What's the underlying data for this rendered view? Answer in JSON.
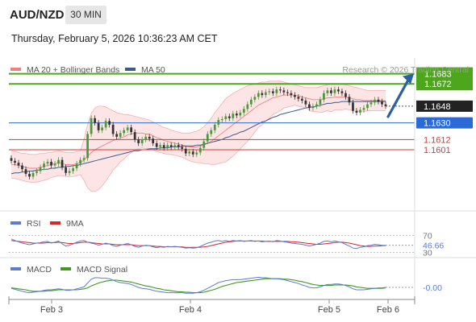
{
  "header": {
    "pair": "AUD/NZD",
    "timeframe": "30 MIN",
    "datetime": "Thursday, February 5, 2026 10:36:23 AM CET",
    "credit": "Research © 2026 Trading Central"
  },
  "colors": {
    "resistance": "#4ea61c",
    "pivot": "#2b6ad6",
    "support": "#d23a3a",
    "last_price": "#222222",
    "candle_up": "#4a9a3c",
    "candle_down": "#333333",
    "bollinger_fill": "#fde0e0",
    "ma20": "#f08080",
    "ma50": "#3a5a8c",
    "rsi": "#5b7bd5",
    "rsi_ma": "#d62828",
    "macd": "#5b7bd5",
    "macd_signal": "#3e9a1e",
    "arrow": "#2b5fa6"
  },
  "chart_data": [
    {
      "type": "candlestick",
      "panel": "price",
      "legend": [
        {
          "name": "MA 20 + Bollinger Bands",
          "color": "#f08080"
        },
        {
          "name": "MA 50",
          "color": "#3a5a8c"
        }
      ],
      "x_ticks": [
        "Feb 3",
        "Feb 4",
        "Feb 5",
        "Feb 6"
      ],
      "y_range": [
        1.1535,
        1.17
      ],
      "levels": [
        {
          "value": 1.1683,
          "label": "1.1683",
          "kind": "resistance"
        },
        {
          "value": 1.1672,
          "label": "1.1672",
          "kind": "resistance"
        },
        {
          "value": 1.163,
          "label": "1.1630",
          "kind": "pivot"
        },
        {
          "value": 1.1612,
          "label": "1.1612",
          "kind": "support"
        },
        {
          "value": 1.1601,
          "label": "1.1601",
          "kind": "support"
        }
      ],
      "last_price": {
        "value": 1.1648,
        "label": "1.1648"
      },
      "close": [
        1.1589,
        1.1587,
        1.1584,
        1.158,
        1.1575,
        1.1572,
        1.1576,
        1.1578,
        1.1582,
        1.1586,
        1.1588,
        1.1584,
        1.1586,
        1.159,
        1.1582,
        1.1576,
        1.1578,
        1.1581,
        1.1586,
        1.159,
        1.1592,
        1.1618,
        1.1635,
        1.163,
        1.1622,
        1.1625,
        1.1632,
        1.1628,
        1.1618,
        1.1615,
        1.1619,
        1.1622,
        1.1625,
        1.162,
        1.1612,
        1.1608,
        1.1612,
        1.1615,
        1.1613,
        1.1608,
        1.1604,
        1.1606,
        1.1603,
        1.1606,
        1.1604,
        1.1606,
        1.1604,
        1.1602,
        1.1597,
        1.1599,
        1.1596,
        1.1598,
        1.1603,
        1.161,
        1.1618,
        1.1622,
        1.1628,
        1.1633,
        1.1634,
        1.1637,
        1.1635,
        1.164,
        1.1638,
        1.1641,
        1.1645,
        1.165,
        1.1655,
        1.1658,
        1.1662,
        1.166,
        1.1663,
        1.1664,
        1.1662,
        1.1666,
        1.1665,
        1.1663,
        1.1662,
        1.166,
        1.1658,
        1.1656,
        1.1654,
        1.165,
        1.1646,
        1.1648,
        1.165,
        1.1655,
        1.1662,
        1.1665,
        1.1662,
        1.1666,
        1.1664,
        1.1662,
        1.1658,
        1.1652,
        1.1643,
        1.1641,
        1.1644,
        1.1646,
        1.165,
        1.1652,
        1.1655,
        1.1653,
        1.165,
        1.1648
      ],
      "ma20": [
        1.1585,
        1.1585,
        1.1584,
        1.1583,
        1.1582,
        1.1581,
        1.1581,
        1.1581,
        1.1582,
        1.1583,
        1.1584,
        1.1585,
        1.1586,
        1.1587,
        1.1586,
        1.1585,
        1.1585,
        1.1585,
        1.1586,
        1.1587,
        1.159,
        1.1594,
        1.1598,
        1.1601,
        1.1603,
        1.1605,
        1.1607,
        1.1609,
        1.1611,
        1.1612,
        1.1614,
        1.1615,
        1.1617,
        1.1618,
        1.1619,
        1.1619,
        1.1619,
        1.1618,
        1.1618,
        1.1616,
        1.1614,
        1.1613,
        1.1611,
        1.161,
        1.1609,
        1.1608,
        1.1607,
        1.1606,
        1.1605,
        1.1604,
        1.1604,
        1.1604,
        1.1605,
        1.1606,
        1.1608,
        1.161,
        1.1613,
        1.1616,
        1.1619,
        1.1622,
        1.1625,
        1.1628,
        1.1631,
        1.1634,
        1.1637,
        1.164,
        1.1643,
        1.1646,
        1.1649,
        1.1651,
        1.1653,
        1.1655,
        1.1657,
        1.1658,
        1.1659,
        1.166,
        1.166,
        1.166,
        1.166,
        1.1659,
        1.1658,
        1.1657,
        1.1656,
        1.1655,
        1.1655,
        1.1655,
        1.1656,
        1.1657,
        1.1657,
        1.1658,
        1.1658,
        1.1658,
        1.1658,
        1.1657,
        1.1656,
        1.1655,
        1.1655,
        1.1654,
        1.1654,
        1.1654,
        1.1654,
        1.1654,
        1.1654,
        1.1654
      ],
      "bb_upper": [
        1.16,
        1.1599,
        1.1598,
        1.1597,
        1.1597,
        1.1596,
        1.1596,
        1.1596,
        1.1597,
        1.1597,
        1.1598,
        1.1598,
        1.1599,
        1.16,
        1.1599,
        1.1598,
        1.1598,
        1.1598,
        1.1599,
        1.16,
        1.1612,
        1.1628,
        1.164,
        1.1646,
        1.1648,
        1.1648,
        1.1647,
        1.1645,
        1.1643,
        1.1641,
        1.164,
        1.1639,
        1.1639,
        1.1638,
        1.1637,
        1.1636,
        1.1635,
        1.1634,
        1.1633,
        1.1631,
        1.1629,
        1.1627,
        1.1625,
        1.1624,
        1.1622,
        1.1621,
        1.162,
        1.1619,
        1.1619,
        1.1619,
        1.162,
        1.1621,
        1.1623,
        1.1626,
        1.163,
        1.1635,
        1.1641,
        1.1646,
        1.1651,
        1.1656,
        1.1659,
        1.1662,
        1.1664,
        1.1666,
        1.1668,
        1.167,
        1.1671,
        1.1672,
        1.1673,
        1.1674,
        1.1674,
        1.1675,
        1.1675,
        1.1675,
        1.1675,
        1.1674,
        1.1673,
        1.1672,
        1.1671,
        1.167,
        1.1669,
        1.1668,
        1.1668,
        1.1668,
        1.1668,
        1.1669,
        1.167,
        1.1671,
        1.1672,
        1.1672,
        1.1672,
        1.1672,
        1.1671,
        1.167,
        1.1669,
        1.1668,
        1.1667,
        1.1666,
        1.1665,
        1.1665,
        1.1665,
        1.1665,
        1.1665,
        1.1665
      ],
      "bb_lower": [
        1.157,
        1.157,
        1.1569,
        1.1568,
        1.1567,
        1.1566,
        1.1566,
        1.1566,
        1.1567,
        1.1568,
        1.1569,
        1.1571,
        1.1572,
        1.1573,
        1.1573,
        1.1572,
        1.1572,
        1.1572,
        1.1573,
        1.1574,
        1.1568,
        1.156,
        1.1556,
        1.1556,
        1.1558,
        1.1562,
        1.1567,
        1.1573,
        1.1579,
        1.1583,
        1.1588,
        1.1591,
        1.1595,
        1.1598,
        1.1601,
        1.1602,
        1.1603,
        1.1602,
        1.1602,
        1.1601,
        1.1599,
        1.1598,
        1.1597,
        1.1596,
        1.1596,
        1.1595,
        1.1594,
        1.1593,
        1.1591,
        1.1589,
        1.1588,
        1.1587,
        1.1587,
        1.1586,
        1.1586,
        1.1585,
        1.1585,
        1.1586,
        1.1587,
        1.1588,
        1.1591,
        1.1594,
        1.1598,
        1.1602,
        1.1606,
        1.161,
        1.1615,
        1.162,
        1.1625,
        1.1628,
        1.1632,
        1.1635,
        1.1639,
        1.1641,
        1.1643,
        1.1646,
        1.1647,
        1.1648,
        1.1649,
        1.1648,
        1.1647,
        1.1646,
        1.1644,
        1.1642,
        1.1642,
        1.1641,
        1.1642,
        1.1643,
        1.1642,
        1.1644,
        1.1644,
        1.1644,
        1.1645,
        1.1644,
        1.1643,
        1.1642,
        1.1643,
        1.1642,
        1.1643,
        1.1643,
        1.1643,
        1.1643,
        1.1643,
        1.1643
      ],
      "ma50": [
        1.1575,
        1.1576,
        1.1576,
        1.1577,
        1.1577,
        1.1578,
        1.1578,
        1.1579,
        1.1579,
        1.158,
        1.158,
        1.1581,
        1.1581,
        1.1582,
        1.1582,
        1.1583,
        1.1583,
        1.1584,
        1.1584,
        1.1585,
        1.1586,
        1.1587,
        1.1588,
        1.1589,
        1.159,
        1.1591,
        1.1592,
        1.1593,
        1.1594,
        1.1595,
        1.1596,
        1.1597,
        1.1598,
        1.1599,
        1.16,
        1.16,
        1.1601,
        1.1601,
        1.1602,
        1.1602,
        1.1602,
        1.1603,
        1.1603,
        1.1603,
        1.1604,
        1.1604,
        1.1604,
        1.1605,
        1.1605,
        1.1605,
        1.1605,
        1.1606,
        1.1606,
        1.1607,
        1.1608,
        1.1609,
        1.161,
        1.1611,
        1.1612,
        1.1614,
        1.1615,
        1.1617,
        1.1618,
        1.162,
        1.1621,
        1.1623,
        1.1625,
        1.1627,
        1.1629,
        1.1631,
        1.1632,
        1.1634,
        1.1636,
        1.1637,
        1.1639,
        1.164,
        1.1641,
        1.1642,
        1.1643,
        1.1644,
        1.1645,
        1.1646,
        1.1647,
        1.1647,
        1.1648,
        1.1649,
        1.165,
        1.1651,
        1.1651,
        1.1652,
        1.1652,
        1.1653,
        1.1653,
        1.1653,
        1.1653,
        1.1653,
        1.1653,
        1.1653,
        1.1653,
        1.1653,
        1.1653,
        1.1653,
        1.1653,
        1.1653
      ]
    },
    {
      "type": "line",
      "panel": "rsi",
      "legend": [
        {
          "name": "RSI",
          "color": "#5b7bd5"
        },
        {
          "name": "9MA",
          "color": "#d62828"
        }
      ],
      "y_ticks": [
        70,
        30
      ],
      "current_value": {
        "value": 46.66,
        "label": "46.66"
      },
      "rsi": [
        62,
        58,
        55,
        52,
        50,
        48,
        50,
        52,
        53,
        55,
        56,
        52,
        54,
        57,
        50,
        45,
        47,
        50,
        54,
        57,
        58,
        54,
        52,
        50,
        47,
        49,
        52,
        50,
        46,
        44,
        47,
        49,
        51,
        48,
        44,
        42,
        45,
        47,
        46,
        43,
        41,
        43,
        42,
        44,
        43,
        44,
        43,
        42,
        40,
        41,
        40,
        41,
        44,
        48,
        52,
        54,
        57,
        58,
        56,
        58,
        56,
        58,
        57,
        58,
        56,
        57,
        58,
        56,
        57,
        55,
        56,
        57,
        55,
        58,
        57,
        55,
        54,
        52,
        51,
        50,
        49,
        47,
        45,
        47,
        49,
        52,
        56,
        57,
        55,
        57,
        55,
        53,
        49,
        45,
        40,
        39,
        42,
        43,
        46,
        47,
        49,
        48,
        47,
        46.66
      ],
      "ma9": [
        58,
        57,
        56,
        55,
        54,
        53,
        52,
        52,
        52,
        52,
        53,
        53,
        53,
        54,
        53,
        52,
        51,
        51,
        52,
        53,
        54,
        54,
        53,
        52,
        51,
        50,
        50,
        50,
        49,
        48,
        48,
        48,
        48,
        48,
        47,
        46,
        46,
        46,
        46,
        45,
        44,
        44,
        43,
        43,
        43,
        43,
        43,
        43,
        42,
        42,
        42,
        42,
        42,
        43,
        44,
        46,
        48,
        50,
        52,
        54,
        55,
        56,
        57,
        57,
        57,
        57,
        57,
        57,
        57,
        57,
        56,
        56,
        56,
        56,
        56,
        56,
        56,
        55,
        55,
        54,
        53,
        52,
        51,
        50,
        49,
        49,
        50,
        51,
        52,
        53,
        54,
        54,
        53,
        52,
        50,
        48,
        46,
        45,
        44,
        44,
        45,
        45,
        46,
        46
      ]
    },
    {
      "type": "line",
      "panel": "macd",
      "legend": [
        {
          "name": "MACD",
          "color": "#5b7bd5"
        },
        {
          "name": "MACD Signal",
          "color": "#3e9a1e"
        }
      ],
      "current_value": {
        "value": -0.0,
        "label": "-0.00"
      },
      "macd": [
        -0.2,
        -0.4,
        -0.6,
        -0.8,
        -1.0,
        -1.1,
        -1.0,
        -0.9,
        -0.8,
        -0.6,
        -0.5,
        -0.5,
        -0.4,
        -0.3,
        -0.4,
        -0.6,
        -0.6,
        -0.5,
        -0.3,
        -0.1,
        0.1,
        0.9,
        1.7,
        2.0,
        2.0,
        1.9,
        1.9,
        1.8,
        1.5,
        1.2,
        1.0,
        0.9,
        0.8,
        0.6,
        0.3,
        0.0,
        -0.2,
        -0.3,
        -0.4,
        -0.6,
        -0.8,
        -0.9,
        -1.0,
        -1.1,
        -1.1,
        -1.1,
        -1.1,
        -1.1,
        -1.2,
        -1.2,
        -1.2,
        -1.1,
        -0.9,
        -0.6,
        -0.2,
        0.2,
        0.6,
        1.0,
        1.2,
        1.4,
        1.5,
        1.6,
        1.6,
        1.6,
        1.7,
        1.8,
        1.9,
        2.0,
        2.1,
        2.0,
        2.0,
        1.9,
        1.8,
        1.8,
        1.7,
        1.6,
        1.4,
        1.2,
        1.0,
        0.8,
        0.5,
        0.3,
        0.0,
        -0.1,
        -0.1,
        0.1,
        0.4,
        0.6,
        0.6,
        0.7,
        0.7,
        0.6,
        0.4,
        0.1,
        -0.3,
        -0.5,
        -0.5,
        -0.5,
        -0.4,
        -0.3,
        -0.2,
        -0.1,
        -0.1,
        0.0
      ],
      "signal": [
        -0.1,
        -0.2,
        -0.3,
        -0.4,
        -0.5,
        -0.7,
        -0.8,
        -0.8,
        -0.8,
        -0.8,
        -0.7,
        -0.7,
        -0.6,
        -0.5,
        -0.5,
        -0.5,
        -0.5,
        -0.5,
        -0.5,
        -0.4,
        -0.3,
        -0.1,
        0.3,
        0.6,
        0.9,
        1.1,
        1.3,
        1.4,
        1.5,
        1.5,
        1.4,
        1.3,
        1.2,
        1.1,
        0.9,
        0.7,
        0.5,
        0.3,
        0.2,
        0.0,
        -0.2,
        -0.3,
        -0.5,
        -0.6,
        -0.7,
        -0.8,
        -0.9,
        -0.9,
        -1.0,
        -1.0,
        -1.1,
        -1.1,
        -1.1,
        -1.0,
        -0.8,
        -0.6,
        -0.4,
        -0.1,
        0.2,
        0.4,
        0.6,
        0.8,
        1.0,
        1.1,
        1.2,
        1.3,
        1.4,
        1.5,
        1.6,
        1.7,
        1.8,
        1.8,
        1.8,
        1.8,
        1.8,
        1.7,
        1.7,
        1.6,
        1.5,
        1.3,
        1.2,
        1.0,
        0.8,
        0.6,
        0.5,
        0.4,
        0.4,
        0.4,
        0.4,
        0.5,
        0.5,
        0.5,
        0.5,
        0.4,
        0.3,
        0.1,
        0.0,
        -0.1,
        -0.2,
        -0.2,
        -0.2,
        -0.2,
        -0.2,
        -0.1
      ]
    }
  ]
}
